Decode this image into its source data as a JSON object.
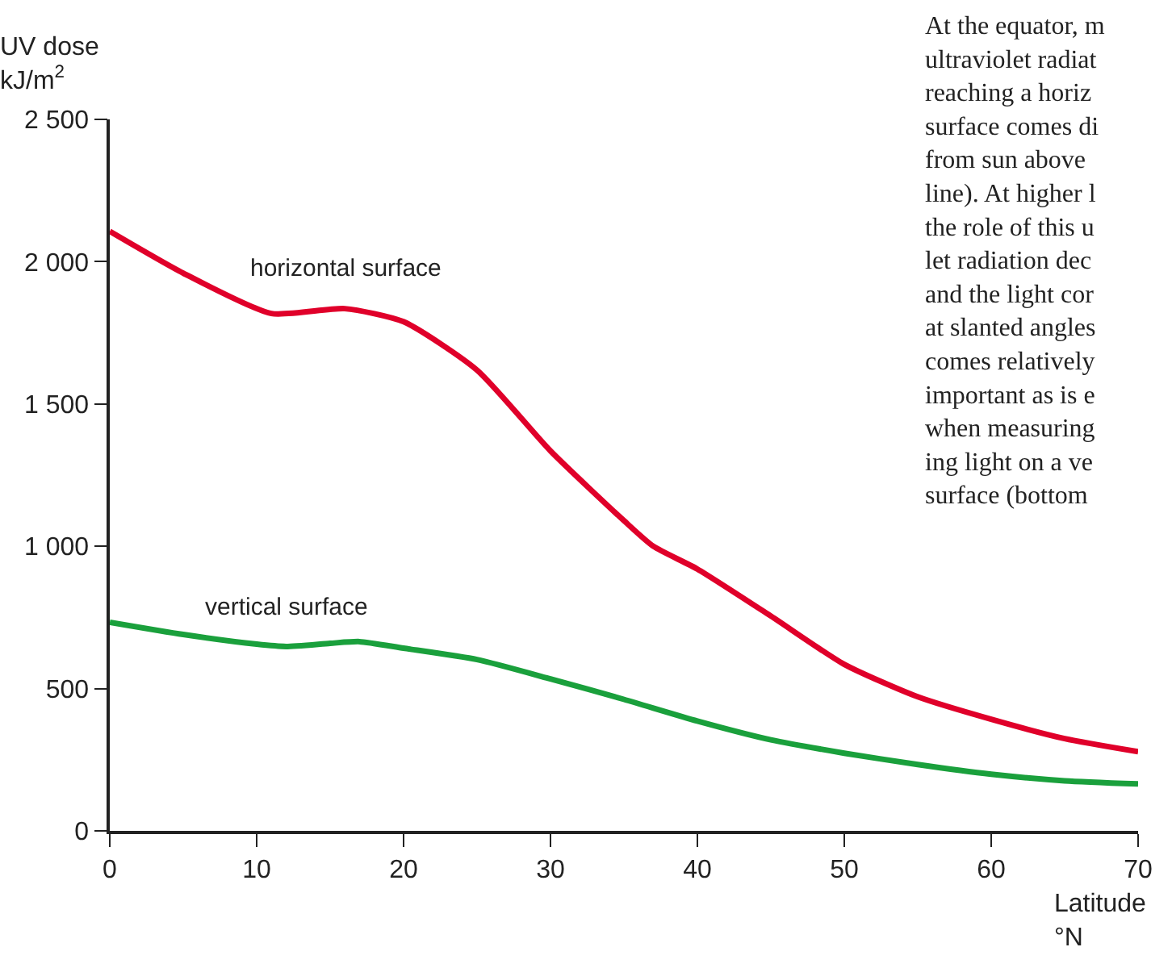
{
  "chart_data": {
    "type": "line",
    "ylabel": "UV dose\nkJ/m$^{2}$",
    "xlabel": "Latitude\n°N",
    "xlim": [
      0,
      70
    ],
    "xticks": [
      0,
      10,
      20,
      30,
      40,
      50,
      60,
      70
    ],
    "ylim": [
      0,
      2500
    ],
    "yticks": [
      {
        "value": 0,
        "label": "0"
      },
      {
        "value": 500,
        "label": "500"
      },
      {
        "value": 1000,
        "label": "1 000"
      },
      {
        "value": 1500,
        "label": "1 500"
      },
      {
        "value": 2000,
        "label": "2 000"
      },
      {
        "value": 2500,
        "label": "2 500"
      }
    ],
    "legend": false,
    "marker": "none",
    "line_style": "solid",
    "series": [
      {
        "name": "horizontal surface",
        "color": "#e0002a",
        "x": [
          0,
          5,
          11,
          16,
          20,
          25,
          30,
          35,
          37,
          40,
          45,
          50,
          55,
          60,
          65,
          70
        ],
        "values": [
          2107,
          1960,
          1818,
          1835,
          1789,
          1619,
          1335,
          1090,
          1000,
          920,
          755,
          585,
          471,
          392,
          324,
          278
        ]
      },
      {
        "name": "vertical surface",
        "color": "#1aa03c",
        "x": [
          0,
          5,
          10,
          12,
          15,
          17,
          20,
          25,
          30,
          35,
          40,
          45,
          50,
          55,
          60,
          65,
          70
        ],
        "values": [
          733,
          690,
          656,
          648,
          659,
          665,
          642,
          602,
          534,
          462,
          386,
          320,
          273,
          233,
          199,
          176,
          165
        ]
      }
    ],
    "annotations": [
      "At the equator, m\nultraviolet radiat\nreaching a horiz\nsurface comes di\nfrom sun above\nline). At higher l\nthe role of this u\nlet radiation dec\nand the light cor\nat slanted angles\ncomes relatively\nimportant as is e\nwhen measuring\ning light on a ve\nsurface (bottom"
    ]
  }
}
